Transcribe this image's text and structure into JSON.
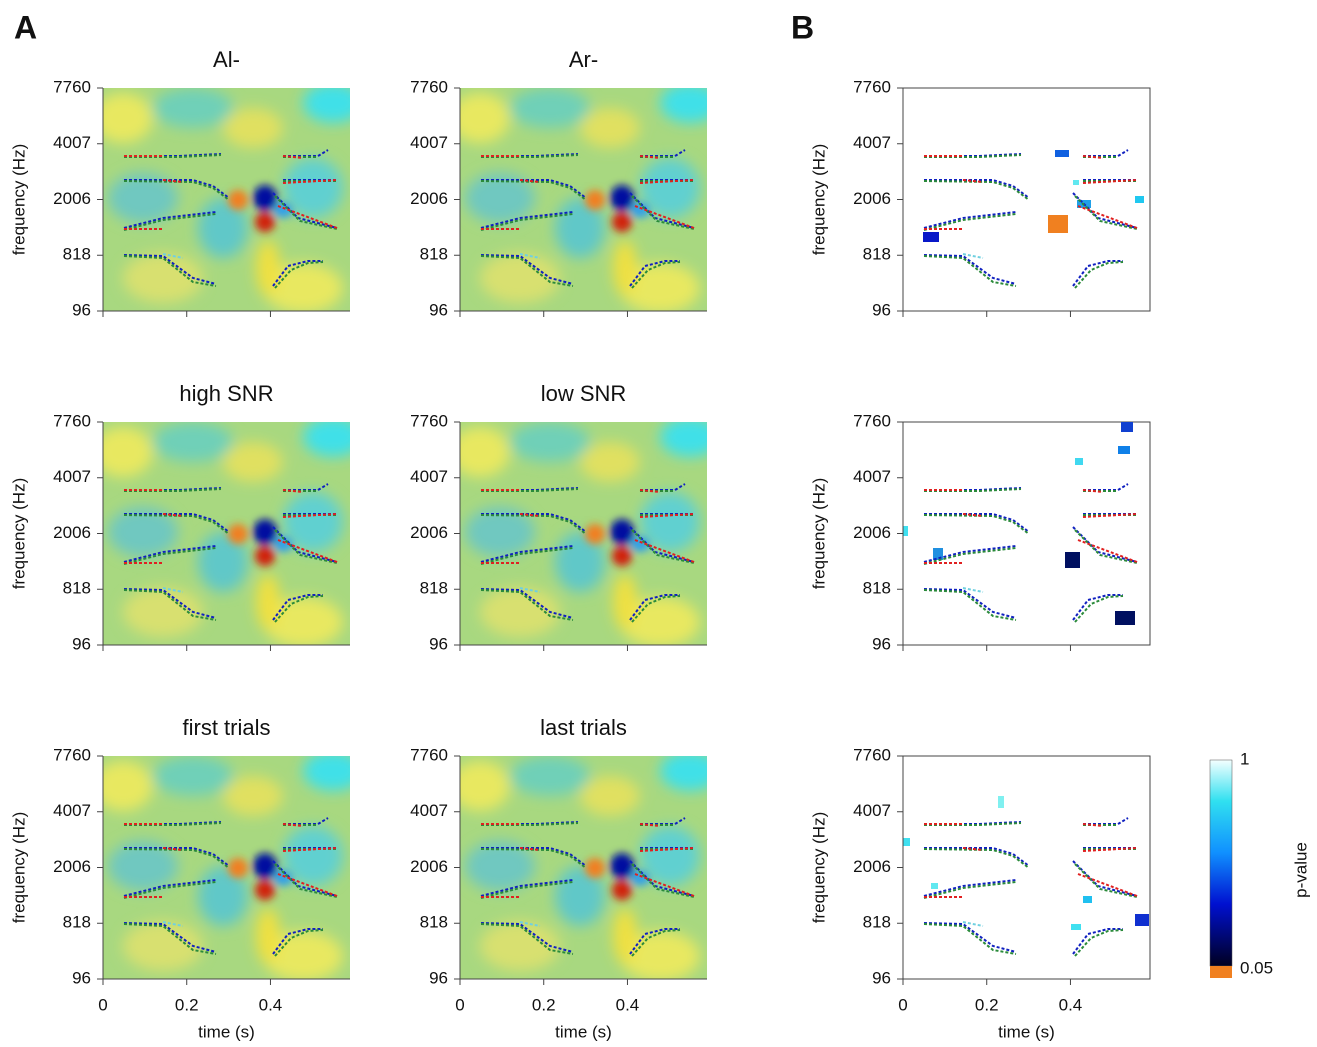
{
  "labels": {
    "panel_a": "A",
    "panel_b": "B"
  },
  "chart_data": [
    {
      "type": "heatmap",
      "title": "Al-",
      "ylabel": "frequency (Hz)",
      "xlim": [
        0,
        0.59
      ],
      "xticks": [
        0,
        0.2,
        0.4
      ],
      "ylim": [
        96,
        7760
      ],
      "yticks": [
        96,
        818,
        2006,
        4007,
        7760
      ]
    },
    {
      "type": "heatmap",
      "title": "Ar-",
      "xlim": [
        0,
        0.59
      ],
      "xticks": [
        0,
        0.2,
        0.4
      ],
      "ylim": [
        96,
        7760
      ],
      "yticks": [
        96,
        818,
        2006,
        4007,
        7760
      ]
    },
    {
      "type": "heatmap",
      "title": "high SNR",
      "ylabel": "frequency (Hz)",
      "xlim": [
        0,
        0.59
      ],
      "xticks": [
        0,
        0.2,
        0.4
      ],
      "ylim": [
        96,
        7760
      ],
      "yticks": [
        96,
        818,
        2006,
        4007,
        7760
      ]
    },
    {
      "type": "heatmap",
      "title": "low SNR",
      "xlim": [
        0,
        0.59
      ],
      "xticks": [
        0,
        0.2,
        0.4
      ],
      "ylim": [
        96,
        7760
      ],
      "yticks": [
        96,
        818,
        2006,
        4007,
        7760
      ]
    },
    {
      "type": "heatmap",
      "title": "first trials",
      "ylabel": "frequency (Hz)",
      "xlabel": "time (s)",
      "xlim": [
        0,
        0.59
      ],
      "xticks": [
        0,
        0.2,
        0.4
      ],
      "ylim": [
        96,
        7760
      ],
      "yticks": [
        96,
        818,
        2006,
        4007,
        7760
      ]
    },
    {
      "type": "heatmap",
      "title": "last trials",
      "xlabel": "time (s)",
      "xlim": [
        0,
        0.59
      ],
      "xticks": [
        0,
        0.2,
        0.4
      ],
      "ylim": [
        96,
        7760
      ],
      "yticks": [
        96,
        818,
        2006,
        4007,
        7760
      ]
    },
    {
      "type": "mask",
      "ylabel": "frequency (Hz)",
      "xlim": [
        0,
        0.59
      ],
      "xticks": [
        0,
        0.2,
        0.4
      ],
      "ylim": [
        96,
        7760
      ],
      "yticks": [
        96,
        818,
        2006,
        4007,
        7760
      ]
    },
    {
      "type": "mask",
      "ylabel": "frequency (Hz)",
      "xlim": [
        0,
        0.59
      ],
      "xticks": [
        0,
        0.2,
        0.4
      ],
      "ylim": [
        96,
        7760
      ],
      "yticks": [
        96,
        818,
        2006,
        4007,
        7760
      ]
    },
    {
      "type": "mask",
      "ylabel": "frequency (Hz)",
      "xlabel": "time (s)",
      "xlim": [
        0,
        0.59
      ],
      "xticks": [
        0,
        0.2,
        0.4
      ],
      "ylim": [
        96,
        7760
      ],
      "yticks": [
        96,
        818,
        2006,
        4007,
        7760
      ]
    }
  ],
  "colorbar": {
    "label": "p-value",
    "ticks": [
      1,
      0.05
    ]
  }
}
